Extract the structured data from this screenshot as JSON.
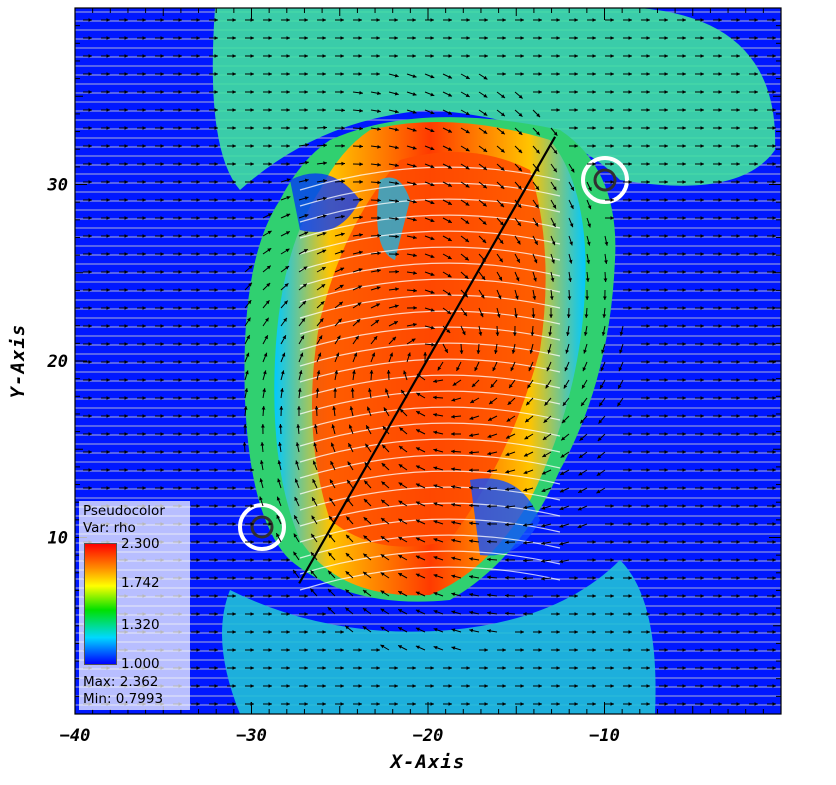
{
  "chart_data": {
    "type": "heatmap",
    "title": "",
    "xlabel": "X-Axis",
    "ylabel": "Y-Axis",
    "xlim": [
      -40,
      0
    ],
    "ylim": [
      0,
      40
    ],
    "x_ticks": [
      -40,
      -30,
      -20,
      -10
    ],
    "y_ticks": [
      10,
      20,
      30
    ],
    "x_tick_labels": [
      "−40",
      "−30",
      "−20",
      "−10"
    ],
    "y_tick_labels": [
      "10",
      "20",
      "30"
    ],
    "plot_type_label": "Pseudocolor",
    "variable_label": "Var: rho",
    "colorbar": {
      "colormap": "rainbow",
      "levels": [
        "2.300",
        "1.742",
        "1.320",
        "1.000"
      ],
      "level_values": [
        2.3,
        1.742,
        1.32,
        1.0
      ],
      "max_label": "Max:  2.362",
      "min_label": "Min:  0.7993"
    },
    "overlays": [
      "velocity-vectors",
      "field-lines",
      "reference-line"
    ],
    "reference_line": {
      "x": [
        -27.3,
        -12.8
      ],
      "y": [
        7.4,
        32.7
      ]
    }
  },
  "colors": {
    "background_field": "#0018ff",
    "low": "#0000ff",
    "mid_low": "#00c8ff",
    "mid": "#00e000",
    "mid_high": "#ffff00",
    "high": "#ff8c00",
    "max": "#ff0000",
    "field_lines": "#d0d0d0",
    "vectors": "#000000"
  }
}
